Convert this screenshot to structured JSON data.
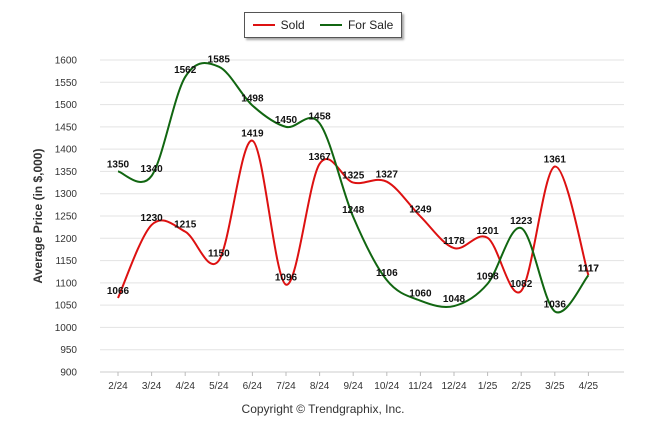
{
  "legend": {
    "sold_label": "Sold",
    "for_sale_label": "For Sale",
    "sold_color": "#dd1111",
    "for_sale_color": "#116611"
  },
  "copyright": "Copyright © Trendgraphix, Inc.",
  "chart_data": {
    "type": "line",
    "ylabel": "Average Price (in $,000)",
    "xlabel": "",
    "ylim": [
      900,
      1600
    ],
    "yticks": [
      900,
      950,
      1000,
      1050,
      1100,
      1150,
      1200,
      1250,
      1300,
      1350,
      1400,
      1450,
      1500,
      1550,
      1600
    ],
    "grid": true,
    "legend_position": "top-center",
    "categories": [
      "2/24",
      "3/24",
      "4/24",
      "5/24",
      "6/24",
      "7/24",
      "8/24",
      "9/24",
      "10/24",
      "11/24",
      "12/24",
      "1/25",
      "2/25",
      "3/25",
      "4/25"
    ],
    "series": [
      {
        "name": "Sold",
        "color": "#dd1111",
        "values": [
          1066,
          1230,
          1215,
          1150,
          1419,
          1096,
          1367,
          1325,
          1327,
          1249,
          1178,
          1201,
          1082,
          1361,
          1117
        ]
      },
      {
        "name": "For Sale",
        "color": "#116611",
        "values": [
          1350,
          1340,
          1562,
          1585,
          1498,
          1450,
          1458,
          1248,
          1106,
          1060,
          1048,
          1098,
          1223,
          1036,
          1117
        ]
      }
    ]
  }
}
